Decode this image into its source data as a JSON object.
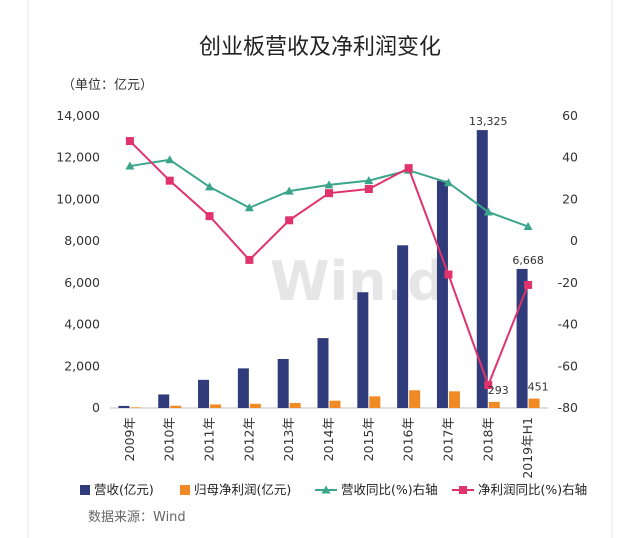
{
  "chart_data": {
    "type": "bar",
    "title": "创业板营收及净利润变化",
    "unit_label": "（单位：亿元）",
    "source": "数据来源：Wind",
    "watermark": "Win.d",
    "categories": [
      "2009年",
      "2010年",
      "2011年",
      "2012年",
      "2013年",
      "2014年",
      "2015年",
      "2016年",
      "2017年",
      "2018年",
      "2019年H1"
    ],
    "ylim_left": [
      0,
      14000
    ],
    "ylim_right": [
      -80,
      60
    ],
    "yticks_left": [
      "0",
      "2,000",
      "4,000",
      "6,000",
      "8,000",
      "10,000",
      "12,000",
      "14,000"
    ],
    "yticks_right": [
      "-80",
      "-60",
      "-40",
      "-20",
      "0",
      "20",
      "40",
      "60"
    ],
    "series": [
      {
        "name": "营收(亿元)",
        "axis": "left",
        "kind": "bar",
        "color": "#2f3b7b",
        "values": [
          100,
          650,
          1350,
          1900,
          2350,
          3350,
          5550,
          7800,
          10900,
          13325,
          6668
        ]
      },
      {
        "name": "归母净利润(亿元)",
        "axis": "left",
        "kind": "bar",
        "color": "#f08a24",
        "values": [
          30,
          110,
          170,
          200,
          240,
          350,
          560,
          850,
          800,
          293,
          451
        ]
      },
      {
        "name": "营收同比(%)右轴",
        "axis": "right",
        "kind": "line",
        "color": "#3aa58a",
        "values": [
          36,
          39,
          26,
          16,
          24,
          27,
          29,
          34,
          28,
          14,
          7
        ]
      },
      {
        "name": "净利润同比(%)右轴",
        "axis": "right",
        "kind": "line",
        "color": "#e0336b",
        "values": [
          48,
          29,
          12,
          -9,
          10,
          23,
          25,
          35,
          -16,
          -69,
          -21
        ]
      }
    ],
    "data_labels": [
      {
        "series": 0,
        "index": 9,
        "text": "13,325"
      },
      {
        "series": 0,
        "index": 10,
        "text": "6,668"
      },
      {
        "series": 1,
        "index": 9,
        "text": "293"
      },
      {
        "series": 1,
        "index": 10,
        "text": "451"
      }
    ],
    "legend_position": "bottom",
    "grid": false
  }
}
